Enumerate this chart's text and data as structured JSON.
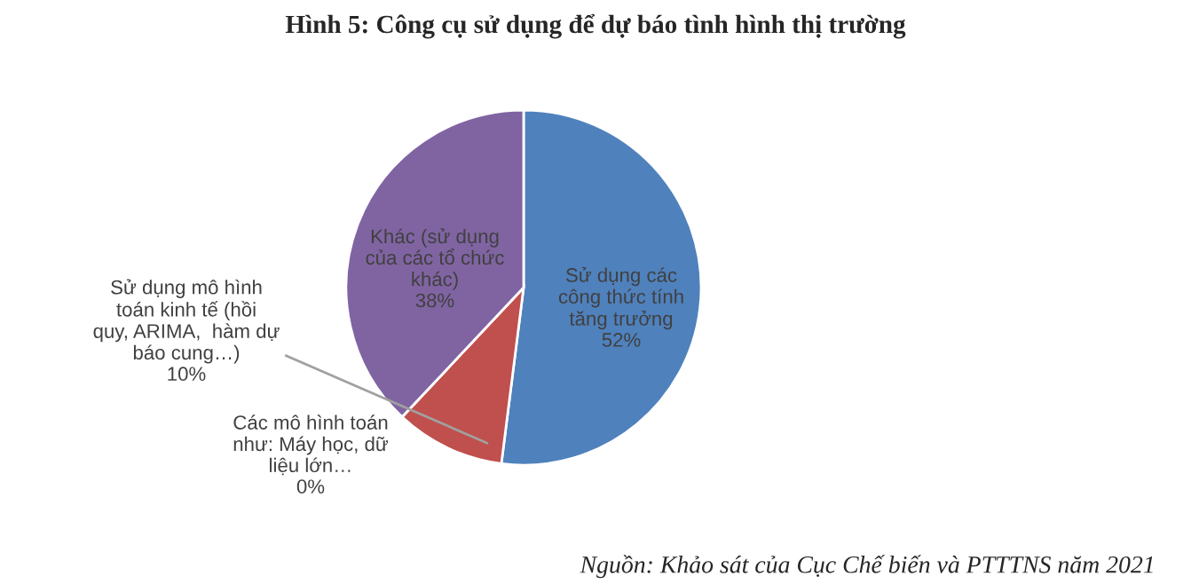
{
  "chart_data": {
    "type": "pie",
    "title": "Hình 5: Công cụ sử dụng để dự báo tình hình thị trường",
    "categories": [
      "Sử dụng các\ncông thức tính\ntăng trưởng",
      "Sử dụng mô hình\ntoán kinh tế (hồi\nquy, ARIMA,  hàm dự\nbáo cung…)",
      "Các mô hình toán\nnhư: Máy học, dữ\nliệu lớn…",
      "Khác (sử dụng\ncủa các tổ chức\nkhác)"
    ],
    "values": [
      52,
      10,
      0,
      38
    ],
    "value_labels": [
      "52%",
      "10%",
      "0%",
      "38%"
    ],
    "colors": [
      "#4f81bd",
      "#c0504d",
      "#9bbb59",
      "#8064a2"
    ],
    "annotations": [
      "Nguồn: Khảo sát của Cục Chế biến và PTTTNS năm 2021"
    ]
  }
}
